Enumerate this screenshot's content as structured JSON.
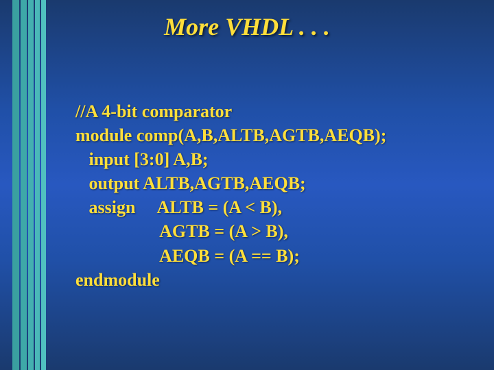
{
  "title": "More VHDL . . .",
  "code": {
    "l1": "//A 4-bit comparator",
    "l2": "module comp(A,B,ALTB,AGTB,AEQB);",
    "l3": "   input [3:0] A,B;",
    "l4": "   output ALTB,AGTB,AEQB;",
    "l5": "   assign     ALTB = (A < B),",
    "l6": "                   AGTB = (A > B),",
    "l7": "                   AEQB = (A == B);",
    "l8": "endmodule"
  },
  "style": {
    "title_color": "#ffde3a",
    "text_color": "#ffde3a",
    "background_gradient_top": "#1a3a6e",
    "background_gradient_mid": "#2858c0",
    "title_fontsize": 36,
    "code_fontsize": 26,
    "stripe_colors": [
      "#3aa0a0",
      "#3ea8a8",
      "#44b0b0",
      "#4ab8b8",
      "#50c0c0"
    ]
  }
}
